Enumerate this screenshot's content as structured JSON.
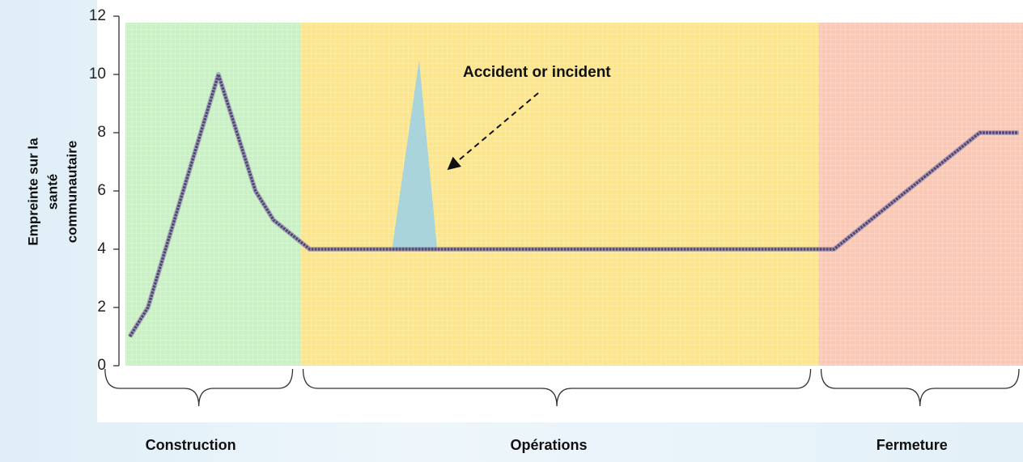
{
  "chart_data": {
    "type": "line",
    "y_label": [
      "Empreinte sur la",
      "santé",
      "communautaire"
    ],
    "ylim": [
      0,
      12
    ],
    "yticks": [
      0,
      2,
      4,
      6,
      8,
      10,
      12
    ],
    "xlim": [
      0,
      100
    ],
    "x": [
      1.2,
      3.2,
      11.0,
      15.1,
      17.1,
      21.1,
      79.1,
      95.2,
      99.5
    ],
    "series": [
      {
        "color": "#55477a",
        "values": [
          1,
          2,
          10,
          6,
          5,
          4,
          4,
          8,
          8
        ]
      }
    ],
    "phases": [
      {
        "label": "Construction",
        "start": 0.7,
        "end": 20.1,
        "color": "#c9f1c4"
      },
      {
        "label": "Opérations",
        "start": 20.1,
        "end": 77.4,
        "color": "#fde68a"
      },
      {
        "label": "Fermeture",
        "start": 77.4,
        "end": 100,
        "color": "#fcc8b4"
      }
    ],
    "annotation": {
      "text": "Accident or incident",
      "spike": {
        "x": [
          30.2,
          33.2,
          35.2
        ],
        "y": [
          4,
          10.5,
          4
        ],
        "color": "#a9d4dc"
      }
    }
  }
}
